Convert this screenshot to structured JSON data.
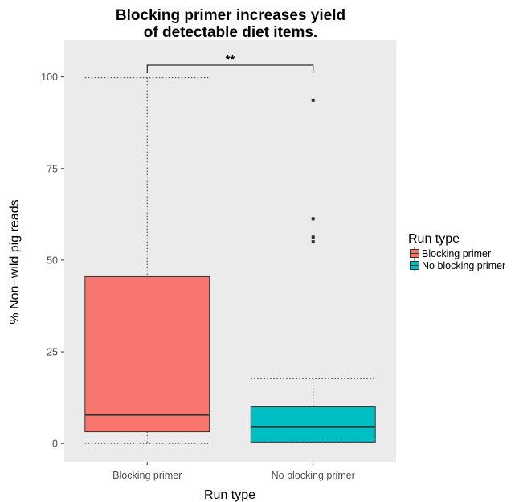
{
  "chart_data": {
    "type": "box",
    "title_line1": "Blocking primer increases yield",
    "title_line2": "of detectable diet items.",
    "xlabel": "Run type",
    "ylabel": "% Non−wild pig reads",
    "ylim": [
      -5,
      110
    ],
    "yticks": [
      0,
      25,
      50,
      75,
      100
    ],
    "categories": [
      "Blocking primer",
      "No blocking primer"
    ],
    "boxes": [
      {
        "category": "Blocking primer",
        "whisker_low": 0,
        "q1": 3.2,
        "median": 7.8,
        "q3": 45.5,
        "whisker_high": 99.8,
        "outliers": [],
        "color": "#F8766D"
      },
      {
        "category": "No blocking primer",
        "whisker_low": 0.2,
        "q1": 0.4,
        "median": 4.5,
        "q3": 10.0,
        "whisker_high": 17.7,
        "outliers": [
          93.6,
          61.3,
          56.3,
          55.0
        ],
        "color": "#00BFC4"
      }
    ],
    "significance": {
      "label": "**",
      "y": 103.2
    },
    "legend": {
      "title": "Run type",
      "position": "right",
      "items": [
        {
          "label": "Blocking primer",
          "color": "#F8766D"
        },
        {
          "label": "No blocking primer",
          "color": "#00BFC4"
        }
      ]
    },
    "panel_background": "#EBEBEB",
    "grid": false
  }
}
